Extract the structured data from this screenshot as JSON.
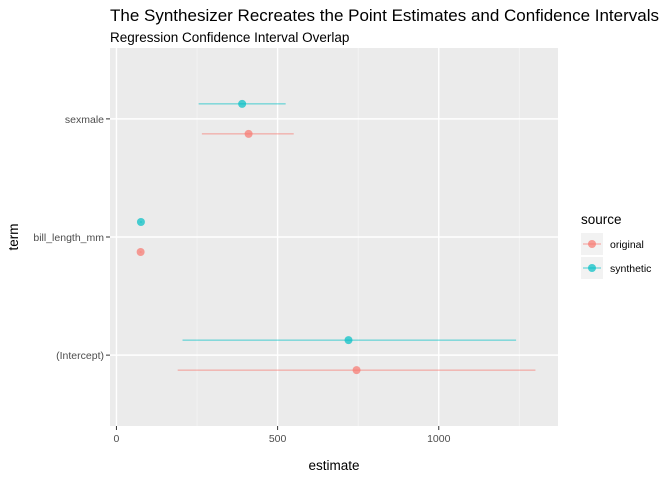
{
  "chart_data": {
    "type": "dot-and-whisker",
    "title": "The Synthesizer Recreates the Point Estimates and Confidence Intervals",
    "subtitle": "Regression Confidence Interval Overlap",
    "xlabel": "estimate",
    "ylabel": "term",
    "xlim": [
      -20,
      1370
    ],
    "x_ticks": [
      0,
      500,
      1000
    ],
    "categories": [
      "(Intercept)",
      "bill_length_mm",
      "sexmale"
    ],
    "grid": true,
    "legend": {
      "title": "source",
      "placement": "right"
    },
    "series": [
      {
        "name": "original",
        "color": "#F8766D",
        "points": [
          {
            "term": "(Intercept)",
            "estimate": 745,
            "low": 190,
            "high": 1300
          },
          {
            "term": "bill_length_mm",
            "estimate": 75,
            "low": 72,
            "high": 78
          },
          {
            "term": "sexmale",
            "estimate": 410,
            "low": 265,
            "high": 550
          }
        ]
      },
      {
        "name": "synthetic",
        "color": "#00BFC4",
        "points": [
          {
            "term": "(Intercept)",
            "estimate": 720,
            "low": 205,
            "high": 1240
          },
          {
            "term": "bill_length_mm",
            "estimate": 76,
            "low": 73,
            "high": 79
          },
          {
            "term": "sexmale",
            "estimate": 390,
            "low": 255,
            "high": 525
          }
        ]
      }
    ]
  }
}
